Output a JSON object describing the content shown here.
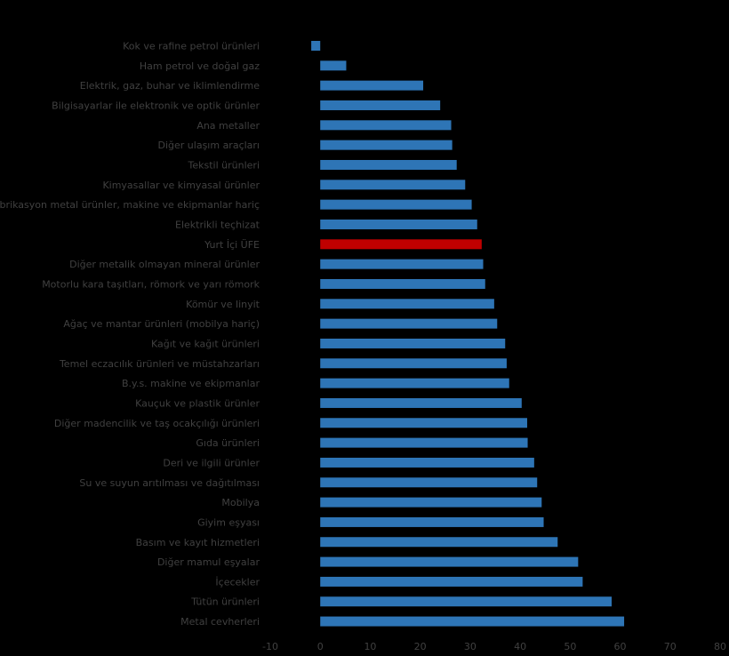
{
  "chart_data": {
    "type": "bar",
    "orientation": "horizontal",
    "categories": [
      "Kok ve rafine petrol ürünleri",
      "Ham petrol ve doğal gaz",
      "Elektrik, gaz, buhar ve iklimlendirme",
      "Bilgisayarlar ile elektronik ve optik ürünler",
      "Ana metaller",
      "Diğer ulaşım araçları",
      "Tekstil ürünleri",
      "Kimyasallar ve kimyasal ürünler",
      "Fabrikasyon metal ürünler, makine ve ekipmanlar hariç",
      "Elektrikli teçhizat",
      "Yurt İçi ÜFE",
      "Diğer metalik olmayan mineral ürünler",
      "Motorlu kara taşıtları, römork ve yarı römork",
      "Kömür ve linyit",
      "Ağaç ve mantar ürünleri (mobilya hariç)",
      "Kağıt ve kağıt ürünleri",
      "Temel eczacılık ürünleri ve müstahzarları",
      "B.y.s. makine ve ekipmanlar",
      "Kauçuk ve plastik ürünler",
      "Diğer madencilik ve taş ocakçılığı ürünleri",
      "Gıda ürünleri",
      "Deri ve ilgili ürünler",
      "Su ve suyun arıtılması ve dağıtılması",
      "Mobilya",
      "Giyim eşyası",
      "Basım ve kayıt hizmetleri",
      "Diğer mamul eşyalar",
      "İçecekler",
      "Tütün ürünleri",
      "Metal cevherleri"
    ],
    "values": [
      -1.8,
      5.2,
      20.6,
      24.0,
      26.2,
      26.4,
      27.3,
      29.0,
      30.3,
      31.4,
      32.3,
      32.6,
      33.0,
      34.8,
      35.4,
      37.0,
      37.3,
      37.8,
      40.3,
      41.4,
      41.5,
      42.8,
      43.4,
      44.3,
      44.7,
      47.5,
      51.6,
      52.5,
      58.3,
      60.8
    ],
    "highlight_category": "Yurt İçi ÜFE",
    "xlim": [
      -10,
      80
    ],
    "x_ticks": [
      -10,
      0,
      10,
      20,
      30,
      40,
      50,
      60,
      70,
      80
    ],
    "title": "",
    "xlabel": "",
    "ylabel": "",
    "grid": false,
    "legend": "none",
    "colors": {
      "bar": "#2E75B6",
      "highlight": "#C00000",
      "text": "#404040",
      "background": "#000000"
    }
  }
}
